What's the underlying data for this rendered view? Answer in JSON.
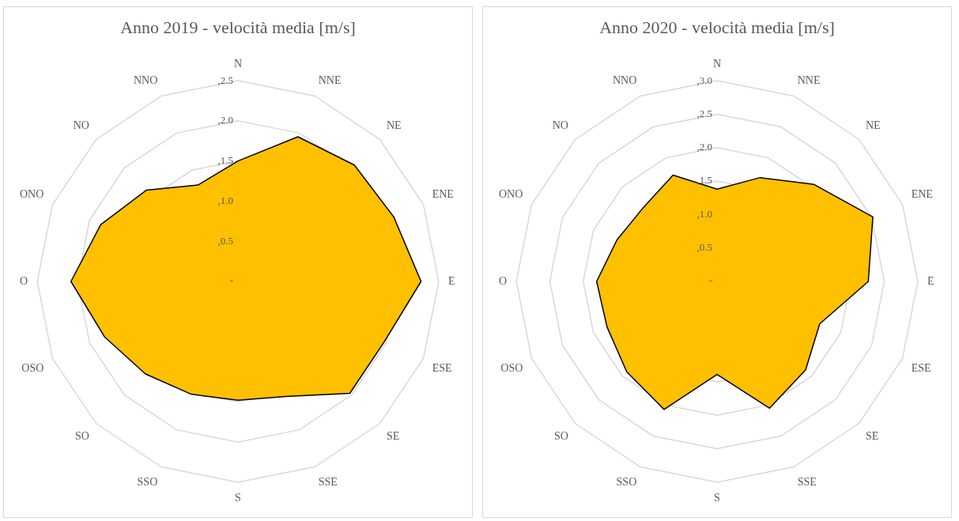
{
  "chart_data": [
    {
      "type": "radar",
      "title": "Anno 2019 - velocità media [m/s]",
      "categories": [
        "N",
        "NNE",
        "NE",
        "ENE",
        "E",
        "ESE",
        "SE",
        "SSE",
        "S",
        "SSO",
        "SO",
        "OSO",
        "O",
        "ONO",
        "NO",
        "NNO"
      ],
      "series": [
        {
          "color": "#ffc000",
          "values": [
            1.5,
            1.95,
            2.05,
            2.1,
            2.28,
            1.97,
            1.97,
            1.55,
            1.48,
            1.52,
            1.63,
            1.8,
            2.08,
            1.85,
            1.61,
            1.3
          ]
        }
      ],
      "ylim": [
        0,
        2.5
      ],
      "yticks": [
        {
          "value": 0,
          "label": "-"
        },
        {
          "value": 0.5,
          "label": ",0.5"
        },
        {
          "value": 1,
          "label": ",1.0"
        },
        {
          "value": 1.5,
          "label": ",1.5"
        },
        {
          "value": 2,
          "label": ",2.0"
        },
        {
          "value": 2.5,
          "label": ",2.5"
        }
      ],
      "grid": true,
      "legend": false,
      "marker": "none",
      "line_style": "solid"
    },
    {
      "type": "radar",
      "title": "Anno 2020 - velocità media [m/s]",
      "categories": [
        "N",
        "NNE",
        "NE",
        "ENE",
        "E",
        "ESE",
        "SE",
        "SSE",
        "S",
        "SSO",
        "SO",
        "OSO",
        "O",
        "ONO",
        "NO",
        "NNO"
      ],
      "series": [
        {
          "color": "#ffc000",
          "values": [
            1.38,
            1.68,
            2.05,
            2.52,
            2.26,
            1.66,
            1.87,
            2.05,
            1.39,
            2.07,
            1.91,
            1.78,
            1.8,
            1.62,
            1.56,
            1.72
          ]
        }
      ],
      "ylim": [
        0,
        3
      ],
      "yticks": [
        {
          "value": 0,
          "label": "-"
        },
        {
          "value": 0.5,
          "label": ",0.5"
        },
        {
          "value": 1,
          "label": ",1.0"
        },
        {
          "value": 1.5,
          "label": ",1.5"
        },
        {
          "value": 2,
          "label": ",2.0"
        },
        {
          "value": 2.5,
          "label": ",2.5"
        },
        {
          "value": 3,
          "label": ",3.0"
        }
      ],
      "grid": true,
      "legend": false,
      "marker": "none",
      "line_style": "solid"
    }
  ]
}
